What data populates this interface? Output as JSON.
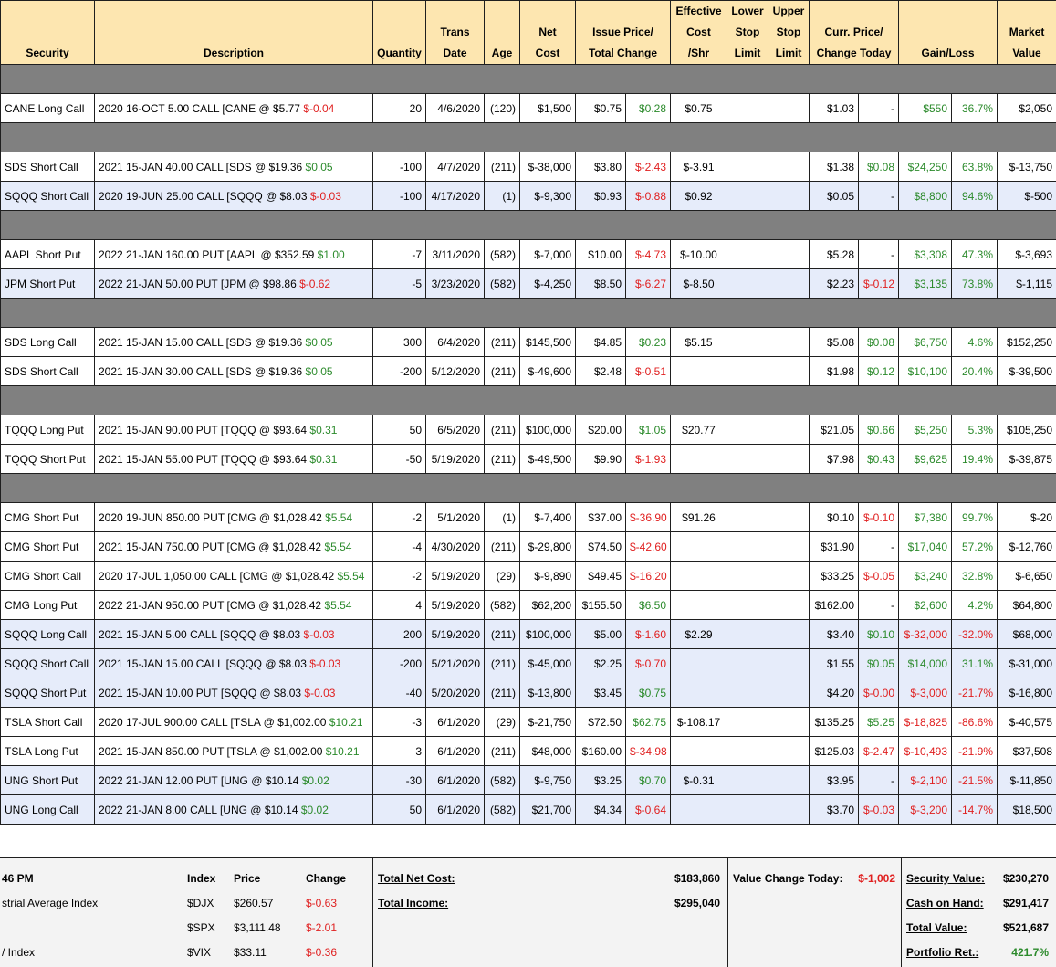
{
  "headers": {
    "security": "Security",
    "description": "Description",
    "quantity": "Quantity",
    "trans_date": [
      "Trans",
      "Date"
    ],
    "age": "Age",
    "net_cost": [
      "Net",
      "Cost"
    ],
    "issue_price": [
      "Issue Price/",
      "Total Change"
    ],
    "effective_cost": [
      "Effective",
      "Cost",
      "/Shr"
    ],
    "lower_stop": [
      "Lower",
      "Stop",
      "Limit"
    ],
    "upper_stop": [
      "Upper",
      "Stop",
      "Limit"
    ],
    "curr_price": [
      "Curr. Price/",
      "Change Today"
    ],
    "gain_loss": "Gain/Loss",
    "market_value": [
      "Market",
      "Value"
    ]
  },
  "rows": [
    {
      "type": "sep"
    },
    {
      "sec": "CANE Long Call",
      "desc": "2020 16-OCT 5.00 CALL [CANE @ $5.77 ",
      "dchg": "$-0.04",
      "dc": "neg",
      "qty": "20",
      "date": "4/6/2020",
      "age": "(120)",
      "net": "$1,500",
      "issue": "$0.75",
      "tchg": "$0.28",
      "tc": "pos",
      "eff": "$0.75",
      "curr": "$1.03",
      "today": "-",
      "tdc": "",
      "gl": "$550",
      "glc": "pos",
      "pct": "36.7%",
      "pc": "pos",
      "mv": "$2,050"
    },
    {
      "type": "sep"
    },
    {
      "sec": "SDS Short Call",
      "desc": "2021 15-JAN 40.00 CALL [SDS @ $19.36 ",
      "dchg": "$0.05",
      "dc": "pos",
      "qty": "-100",
      "date": "4/7/2020",
      "age": "(211)",
      "net": "$-38,000",
      "issue": "$3.80",
      "tchg": "$-2.43",
      "tc": "neg",
      "eff": "$-3.91",
      "curr": "$1.38",
      "today": "$0.08",
      "tdc": "pos",
      "gl": "$24,250",
      "glc": "pos",
      "pct": "63.8%",
      "pc": "pos",
      "mv": "$-13,750"
    },
    {
      "sec": "SQQQ Short Call",
      "desc": "2020 19-JUN 25.00 CALL [SQQQ @ $8.03 ",
      "dchg": "$-0.03",
      "dc": "neg",
      "qty": "-100",
      "date": "4/17/2020",
      "age": "(1)",
      "net": "$-9,300",
      "issue": "$0.93",
      "tchg": "$-0.88",
      "tc": "neg",
      "eff": "$0.92",
      "curr": "$0.05",
      "today": "-",
      "tdc": "",
      "gl": "$8,800",
      "glc": "pos",
      "pct": "94.6%",
      "pc": "pos",
      "mv": "$-500",
      "alt": true
    },
    {
      "type": "sep"
    },
    {
      "sec": "AAPL Short Put",
      "desc": "2022 21-JAN 160.00 PUT [AAPL @ $352.59 ",
      "dchg": "$1.00",
      "dc": "pos",
      "qty": "-7",
      "date": "3/11/2020",
      "age": "(582)",
      "net": "$-7,000",
      "issue": "$10.00",
      "tchg": "$-4.73",
      "tc": "neg",
      "eff": "$-10.00",
      "curr": "$5.28",
      "today": "-",
      "tdc": "",
      "gl": "$3,308",
      "glc": "pos",
      "pct": "47.3%",
      "pc": "pos",
      "mv": "$-3,693"
    },
    {
      "sec": "JPM Short Put",
      "desc": "2022 21-JAN 50.00 PUT [JPM @ $98.86 ",
      "dchg": "$-0.62",
      "dc": "neg",
      "qty": "-5",
      "date": "3/23/2020",
      "age": "(582)",
      "net": "$-4,250",
      "issue": "$8.50",
      "tchg": "$-6.27",
      "tc": "neg",
      "eff": "$-8.50",
      "curr": "$2.23",
      "today": "$-0.12",
      "tdc": "neg",
      "gl": "$3,135",
      "glc": "pos",
      "pct": "73.8%",
      "pc": "pos",
      "mv": "$-1,115",
      "alt": true
    },
    {
      "type": "sep"
    },
    {
      "sec": "SDS Long Call",
      "desc": "2021 15-JAN 15.00 CALL [SDS @ $19.36 ",
      "dchg": "$0.05",
      "dc": "pos",
      "qty": "300",
      "date": "6/4/2020",
      "age": "(211)",
      "net": "$145,500",
      "issue": "$4.85",
      "tchg": "$0.23",
      "tc": "pos",
      "eff": "$5.15",
      "curr": "$5.08",
      "today": "$0.08",
      "tdc": "pos",
      "gl": "$6,750",
      "glc": "pos",
      "pct": "4.6%",
      "pc": "pos",
      "mv": "$152,250"
    },
    {
      "sec": "SDS Short Call",
      "desc": "2021 15-JAN 30.00 CALL [SDS @ $19.36 ",
      "dchg": "$0.05",
      "dc": "pos",
      "qty": "-200",
      "date": "5/12/2020",
      "age": "(211)",
      "net": "$-49,600",
      "issue": "$2.48",
      "tchg": "$-0.51",
      "tc": "neg",
      "eff": "",
      "curr": "$1.98",
      "today": "$0.12",
      "tdc": "pos",
      "gl": "$10,100",
      "glc": "pos",
      "pct": "20.4%",
      "pc": "pos",
      "mv": "$-39,500"
    },
    {
      "type": "sep"
    },
    {
      "sec": "TQQQ Long Put",
      "desc": "2021 15-JAN 90.00 PUT [TQQQ @ $93.64 ",
      "dchg": "$0.31",
      "dc": "pos",
      "qty": "50",
      "date": "6/5/2020",
      "age": "(211)",
      "net": "$100,000",
      "issue": "$20.00",
      "tchg": "$1.05",
      "tc": "pos",
      "eff": "$20.77",
      "curr": "$21.05",
      "today": "$0.66",
      "tdc": "pos",
      "gl": "$5,250",
      "glc": "pos",
      "pct": "5.3%",
      "pc": "pos",
      "mv": "$105,250"
    },
    {
      "sec": "TQQQ Short Put",
      "desc": "2021 15-JAN 55.00 PUT [TQQQ @ $93.64 ",
      "dchg": "$0.31",
      "dc": "pos",
      "qty": "-50",
      "date": "5/19/2020",
      "age": "(211)",
      "net": "$-49,500",
      "issue": "$9.90",
      "tchg": "$-1.93",
      "tc": "neg",
      "eff": "",
      "curr": "$7.98",
      "today": "$0.43",
      "tdc": "pos",
      "gl": "$9,625",
      "glc": "pos",
      "pct": "19.4%",
      "pc": "pos",
      "mv": "$-39,875"
    },
    {
      "type": "sep"
    },
    {
      "sec": "CMG Short Put",
      "desc": "2020 19-JUN 850.00 PUT [CMG @ $1,028.42 ",
      "dchg": "$5.54",
      "dc": "pos",
      "qty": "-2",
      "date": "5/1/2020",
      "age": "(1)",
      "net": "$-7,400",
      "issue": "$37.00",
      "tchg": "$-36.90",
      "tc": "neg",
      "eff": "$91.26",
      "curr": "$0.10",
      "today": "$-0.10",
      "tdc": "neg",
      "gl": "$7,380",
      "glc": "pos",
      "pct": "99.7%",
      "pc": "pos",
      "mv": "$-20"
    },
    {
      "sec": "CMG Short Put",
      "desc": "2021 15-JAN 750.00 PUT [CMG @ $1,028.42 ",
      "dchg": "$5.54",
      "dc": "pos",
      "qty": "-4",
      "date": "4/30/2020",
      "age": "(211)",
      "net": "$-29,800",
      "issue": "$74.50",
      "tchg": "$-42.60",
      "tc": "neg",
      "eff": "",
      "curr": "$31.90",
      "today": "-",
      "tdc": "",
      "gl": "$17,040",
      "glc": "pos",
      "pct": "57.2%",
      "pc": "pos",
      "mv": "$-12,760"
    },
    {
      "sec": "CMG Short Call",
      "desc": "2020 17-JUL 1,050.00 CALL [CMG @ $1,028.42 ",
      "dchg": "$5.54",
      "dc": "pos",
      "qty": "-2",
      "date": "5/19/2020",
      "age": "(29)",
      "net": "$-9,890",
      "issue": "$49.45",
      "tchg": "$-16.20",
      "tc": "neg",
      "eff": "",
      "curr": "$33.25",
      "today": "$-0.05",
      "tdc": "neg",
      "gl": "$3,240",
      "glc": "pos",
      "pct": "32.8%",
      "pc": "pos",
      "mv": "$-6,650"
    },
    {
      "sec": "CMG Long Put",
      "desc": "2022 21-JAN 950.00 PUT [CMG @ $1,028.42 ",
      "dchg": "$5.54",
      "dc": "pos",
      "qty": "4",
      "date": "5/19/2020",
      "age": "(582)",
      "net": "$62,200",
      "issue": "$155.50",
      "tchg": "$6.50",
      "tc": "pos",
      "eff": "",
      "curr": "$162.00",
      "today": "-",
      "tdc": "",
      "gl": "$2,600",
      "glc": "pos",
      "pct": "4.2%",
      "pc": "pos",
      "mv": "$64,800"
    },
    {
      "sec": "SQQQ Long Call",
      "desc": "2021 15-JAN 5.00 CALL [SQQQ @ $8.03 ",
      "dchg": "$-0.03",
      "dc": "neg",
      "qty": "200",
      "date": "5/19/2020",
      "age": "(211)",
      "net": "$100,000",
      "issue": "$5.00",
      "tchg": "$-1.60",
      "tc": "neg",
      "eff": "$2.29",
      "curr": "$3.40",
      "today": "$0.10",
      "tdc": "pos",
      "gl": "$-32,000",
      "glc": "neg",
      "pct": "-32.0%",
      "pc": "neg",
      "mv": "$68,000",
      "alt": true
    },
    {
      "sec": "SQQQ Short Call",
      "desc": "2021 15-JAN 15.00 CALL [SQQQ @ $8.03 ",
      "dchg": "$-0.03",
      "dc": "neg",
      "qty": "-200",
      "date": "5/21/2020",
      "age": "(211)",
      "net": "$-45,000",
      "issue": "$2.25",
      "tchg": "$-0.70",
      "tc": "neg",
      "eff": "",
      "curr": "$1.55",
      "today": "$0.05",
      "tdc": "pos",
      "gl": "$14,000",
      "glc": "pos",
      "pct": "31.1%",
      "pc": "pos",
      "mv": "$-31,000",
      "alt": true
    },
    {
      "sec": "SQQQ Short Put",
      "desc": "2021 15-JAN 10.00 PUT [SQQQ @ $8.03 ",
      "dchg": "$-0.03",
      "dc": "neg",
      "qty": "-40",
      "date": "5/20/2020",
      "age": "(211)",
      "net": "$-13,800",
      "issue": "$3.45",
      "tchg": "$0.75",
      "tc": "pos",
      "eff": "",
      "curr": "$4.20",
      "today": "$-0.00",
      "tdc": "neg",
      "gl": "$-3,000",
      "glc": "neg",
      "pct": "-21.7%",
      "pc": "neg",
      "mv": "$-16,800",
      "alt": true
    },
    {
      "sec": "TSLA Short Call",
      "desc": "2020 17-JUL 900.00 CALL [TSLA @ $1,002.00 ",
      "dchg": "$10.21",
      "dc": "pos",
      "qty": "-3",
      "date": "6/1/2020",
      "age": "(29)",
      "net": "$-21,750",
      "issue": "$72.50",
      "tchg": "$62.75",
      "tc": "pos",
      "eff": "$-108.17",
      "curr": "$135.25",
      "today": "$5.25",
      "tdc": "pos",
      "gl": "$-18,825",
      "glc": "neg",
      "pct": "-86.6%",
      "pc": "neg",
      "mv": "$-40,575"
    },
    {
      "sec": "TSLA Long Put",
      "desc": "2021 15-JAN 850.00 PUT [TSLA @ $1,002.00 ",
      "dchg": "$10.21",
      "dc": "pos",
      "qty": "3",
      "date": "6/1/2020",
      "age": "(211)",
      "net": "$48,000",
      "issue": "$160.00",
      "tchg": "$-34.98",
      "tc": "neg",
      "eff": "",
      "curr": "$125.03",
      "today": "$-2.47",
      "tdc": "neg",
      "gl": "$-10,493",
      "glc": "neg",
      "pct": "-21.9%",
      "pc": "neg",
      "mv": "$37,508"
    },
    {
      "sec": "UNG Short Put",
      "desc": "2022 21-JAN 12.00 PUT [UNG @ $10.14 ",
      "dchg": "$0.02",
      "dc": "pos",
      "qty": "-30",
      "date": "6/1/2020",
      "age": "(582)",
      "net": "$-9,750",
      "issue": "$3.25",
      "tchg": "$0.70",
      "tc": "pos",
      "eff": "$-0.31",
      "curr": "$3.95",
      "today": "-",
      "tdc": "",
      "gl": "$-2,100",
      "glc": "neg",
      "pct": "-21.5%",
      "pc": "neg",
      "mv": "$-11,850",
      "alt": true
    },
    {
      "sec": "UNG Long Call",
      "desc": "2022 21-JAN 8.00 CALL [UNG @ $10.14 ",
      "dchg": "$0.02",
      "dc": "pos",
      "qty": "50",
      "date": "6/1/2020",
      "age": "(582)",
      "net": "$21,700",
      "issue": "$4.34",
      "tchg": "$-0.64",
      "tc": "neg",
      "eff": "",
      "curr": "$3.70",
      "today": "$-0.03",
      "tdc": "neg",
      "gl": "$-3,200",
      "glc": "neg",
      "pct": "-14.7%",
      "pc": "neg",
      "mv": "$18,500",
      "alt": true
    }
  ],
  "footer": {
    "time": "46 PM",
    "index_head": "Index",
    "price_head": "Price",
    "change_head": "Change",
    "indexes": [
      {
        "name": "strial Average Index",
        "sym": "$DJX",
        "price": "$260.57",
        "chg": "$-0.63"
      },
      {
        "name": "",
        "sym": "$SPX",
        "price": "$3,111.48",
        "chg": "$-2.01"
      },
      {
        "name": "/ Index",
        "sym": "$VIX",
        "price": "$33.11",
        "chg": "$-0.36"
      }
    ],
    "total_net_cost_label": "Total Net Cost:",
    "total_net_cost": "$183,860",
    "total_income_label": "Total Income:",
    "total_income": "$295,040",
    "value_change_label": "Value Change Today:",
    "value_change": "$-1,002",
    "security_value_label": "Security Value:",
    "security_value": "$230,270",
    "cash_label": "Cash on Hand:",
    "cash": "$291,417",
    "total_value_label": "Total Value:",
    "total_value": "$521,687",
    "portfolio_ret_label": "Portfolio Ret.:",
    "portfolio_ret": "421.7%"
  },
  "colors": {
    "header_bg": "#fde6b0",
    "separator": "#808080",
    "alt_row": "#e6ecfa",
    "positive": "#2b8a2b",
    "negative": "#e02020"
  }
}
